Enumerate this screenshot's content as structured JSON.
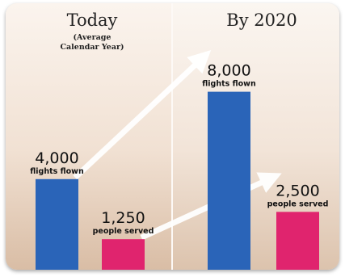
{
  "chart_data": {
    "type": "bar",
    "panels": [
      {
        "title": "Today",
        "subtitle_lines": [
          "(Average",
          "Calendar Year)"
        ],
        "series": [
          {
            "value_label": "4,000",
            "value": 4000,
            "label": "flights flown",
            "color": "#2a64b8"
          },
          {
            "value_label": "1,250",
            "value": 1250,
            "label": "people served",
            "color": "#e0246e"
          }
        ]
      },
      {
        "title": "By 2020",
        "subtitle_lines": [],
        "series": [
          {
            "value_label": "8,000",
            "value": 8000,
            "label": "flights flown",
            "color": "#2a64b8"
          },
          {
            "value_label": "2,500",
            "value": 2500,
            "label": "people served",
            "color": "#e0246e"
          }
        ]
      }
    ],
    "ylim": [
      0,
      8000
    ],
    "grid": false,
    "legend": "none"
  }
}
